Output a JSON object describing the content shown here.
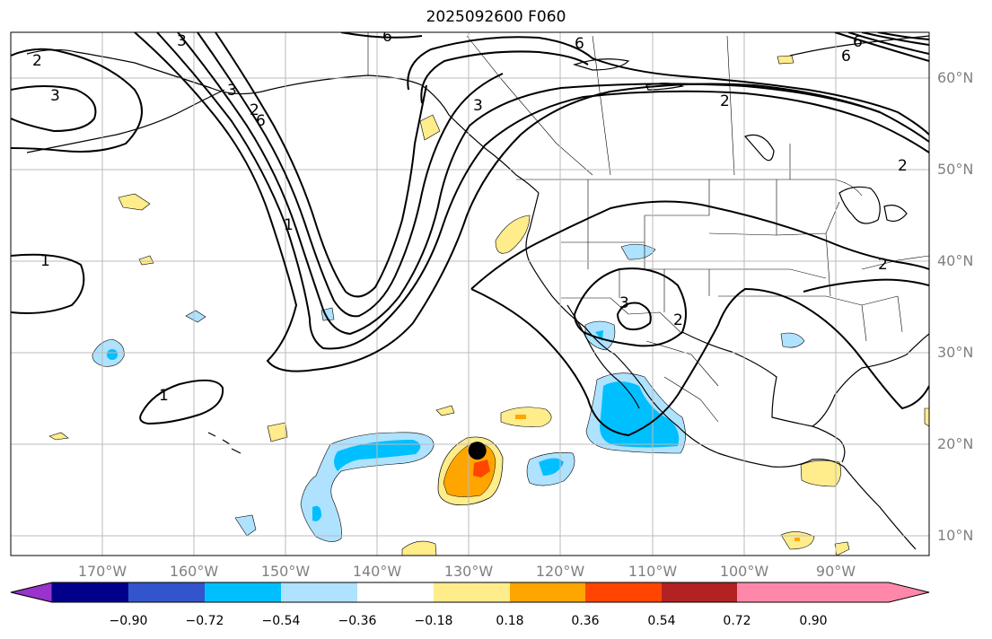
{
  "title": "2025092600 F060",
  "lat_labels": [
    "60°N",
    "50°N",
    "40°N",
    "30°N",
    "20°N",
    "10°N"
  ],
  "lon_labels": [
    "170°W",
    "160°W",
    "150°W",
    "140°W",
    "130°W",
    "120°W",
    "110°W",
    "100°W",
    "90°W"
  ],
  "colorbar": {
    "colors": [
      "#9933cc",
      "#00008b",
      "#3355cc",
      "#00bfff",
      "#aee2ff",
      "#ffffff",
      "#ffec8b",
      "#ffa500",
      "#ff4500",
      "#b22222",
      "#ff88aa"
    ],
    "tick_labels": [
      "−0.90",
      "−0.72",
      "−0.54",
      "−0.36",
      "−0.18",
      "0.18",
      "0.36",
      "0.54",
      "0.72",
      "0.90"
    ]
  },
  "contour_labels": [
    "2",
    "3",
    "1",
    "1",
    "3",
    "6",
    "1",
    "6",
    "6",
    "3",
    "3",
    "2",
    "2",
    "6",
    "3",
    "2",
    "2",
    "6",
    "2"
  ],
  "map_extent": {
    "lon_range": [
      "180°W",
      "80°W"
    ],
    "lat_range": [
      "8°N",
      "65°N"
    ]
  },
  "marker": {
    "name": "storm-center",
    "lon": -129.2,
    "lat": 19.3
  }
}
